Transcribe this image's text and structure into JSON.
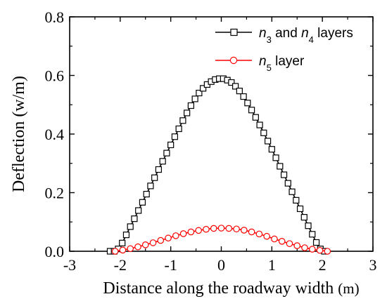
{
  "chart_data": {
    "type": "line",
    "xlabel": "Distance along the roadway width",
    "xlabel_unit": "(m)",
    "ylabel": "Deflection (w/m)",
    "xlim": [
      -3,
      3
    ],
    "ylim": [
      0,
      0.8
    ],
    "xticks": [
      "-3",
      "-2",
      "-1",
      "0",
      "1",
      "2",
      "3"
    ],
    "yticks": [
      "0.0",
      "0.2",
      "0.4",
      "0.6",
      "0.8"
    ],
    "grid": false,
    "legend_position": "top-right",
    "series": [
      {
        "name": "n3 and n4 layers",
        "legend_parts": [
          {
            "text": "n",
            "italic": true,
            "sub": false
          },
          {
            "text": "3",
            "italic": false,
            "sub": true
          },
          {
            "text": " and ",
            "italic": false,
            "sub": false
          },
          {
            "text": "n",
            "italic": true,
            "sub": false
          },
          {
            "text": "4",
            "italic": false,
            "sub": true
          },
          {
            "text": " layers",
            "italic": false,
            "sub": false
          }
        ],
        "color": "#000000",
        "marker": "square",
        "x": [
          -2.2,
          -2.12,
          -2.04,
          -1.96,
          -1.88,
          -1.8,
          -1.72,
          -1.64,
          -1.56,
          -1.48,
          -1.4,
          -1.32,
          -1.24,
          -1.16,
          -1.08,
          -1.0,
          -0.92,
          -0.84,
          -0.76,
          -0.68,
          -0.6,
          -0.52,
          -0.44,
          -0.36,
          -0.28,
          -0.2,
          -0.12,
          -0.04,
          0.04,
          0.12,
          0.2,
          0.28,
          0.36,
          0.44,
          0.52,
          0.6,
          0.68,
          0.76,
          0.84,
          0.92,
          1.0,
          1.08,
          1.16,
          1.24,
          1.32,
          1.4,
          1.48,
          1.56,
          1.64,
          1.72,
          1.8,
          1.88,
          1.96,
          2.04
        ],
        "y": [
          0.0,
          0.0,
          0.008,
          0.028,
          0.056,
          0.084,
          0.111,
          0.139,
          0.167,
          0.195,
          0.223,
          0.251,
          0.279,
          0.307,
          0.335,
          0.363,
          0.391,
          0.418,
          0.446,
          0.472,
          0.497,
          0.52,
          0.54,
          0.556,
          0.569,
          0.579,
          0.586,
          0.589,
          0.589,
          0.584,
          0.576,
          0.563,
          0.547,
          0.528,
          0.506,
          0.482,
          0.457,
          0.431,
          0.404,
          0.376,
          0.348,
          0.319,
          0.29,
          0.261,
          0.232,
          0.203,
          0.174,
          0.145,
          0.116,
          0.087,
          0.058,
          0.03,
          0.008,
          0.0
        ]
      },
      {
        "name": "n5 layer",
        "legend_parts": [
          {
            "text": "n",
            "italic": true,
            "sub": false
          },
          {
            "text": "5",
            "italic": false,
            "sub": true
          },
          {
            "text": " layer",
            "italic": false,
            "sub": false
          }
        ],
        "color": "#ff0000",
        "marker": "circle",
        "x": [
          -2.1,
          -1.95,
          -1.8,
          -1.65,
          -1.5,
          -1.35,
          -1.2,
          -1.05,
          -0.9,
          -0.75,
          -0.6,
          -0.45,
          -0.3,
          -0.15,
          0.0,
          0.15,
          0.3,
          0.45,
          0.6,
          0.75,
          0.9,
          1.05,
          1.2,
          1.35,
          1.5,
          1.65,
          1.8,
          1.95,
          2.1
        ],
        "y": [
          0.0,
          0.004,
          0.009,
          0.015,
          0.022,
          0.029,
          0.037,
          0.045,
          0.053,
          0.06,
          0.066,
          0.071,
          0.075,
          0.078,
          0.079,
          0.078,
          0.076,
          0.072,
          0.066,
          0.059,
          0.051,
          0.042,
          0.034,
          0.026,
          0.019,
          0.012,
          0.007,
          0.003,
          0.0
        ]
      }
    ]
  }
}
